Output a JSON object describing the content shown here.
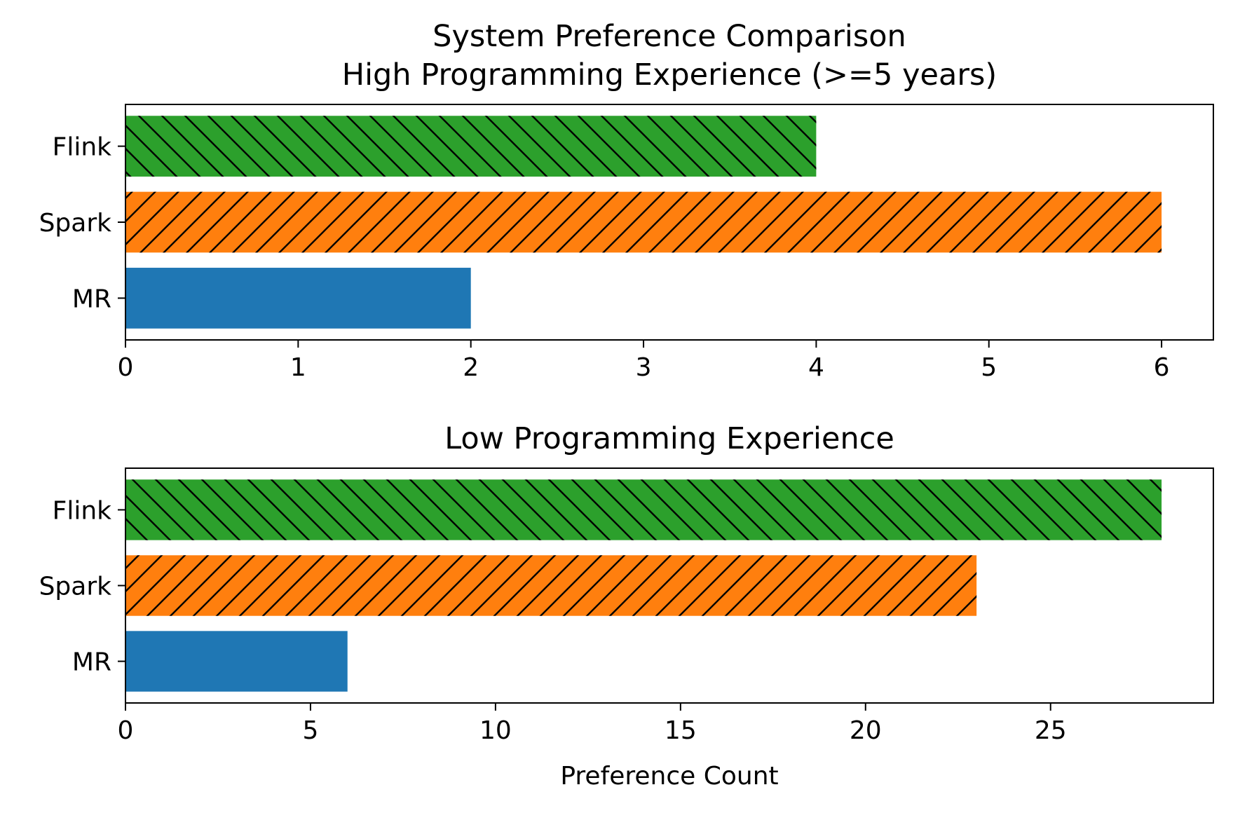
{
  "chart_data": [
    {
      "type": "bar",
      "orientation": "horizontal",
      "title_lines": [
        "System Preference Comparison",
        "High Programming Experience (>=5 years)"
      ],
      "categories": [
        "MR",
        "Spark",
        "Flink"
      ],
      "values": [
        2,
        6,
        4
      ],
      "colors": [
        "#1f77b4",
        "#ff7f0e",
        "#2ca02c"
      ],
      "hatches": [
        "none",
        "forward",
        "backward"
      ],
      "xticks": [
        0,
        1,
        2,
        3,
        4,
        5,
        6
      ],
      "xlim": [
        0,
        6.3
      ],
      "xlabel": "",
      "grid": false
    },
    {
      "type": "bar",
      "orientation": "horizontal",
      "title_lines": [
        "Low Programming Experience"
      ],
      "categories": [
        "MR",
        "Spark",
        "Flink"
      ],
      "values": [
        6,
        23,
        28
      ],
      "colors": [
        "#1f77b4",
        "#ff7f0e",
        "#2ca02c"
      ],
      "hatches": [
        "none",
        "forward",
        "backward"
      ],
      "xticks": [
        0,
        5,
        10,
        15,
        20,
        25
      ],
      "xlim": [
        0,
        29.4
      ],
      "xlabel": "Preference Count",
      "grid": false
    }
  ]
}
